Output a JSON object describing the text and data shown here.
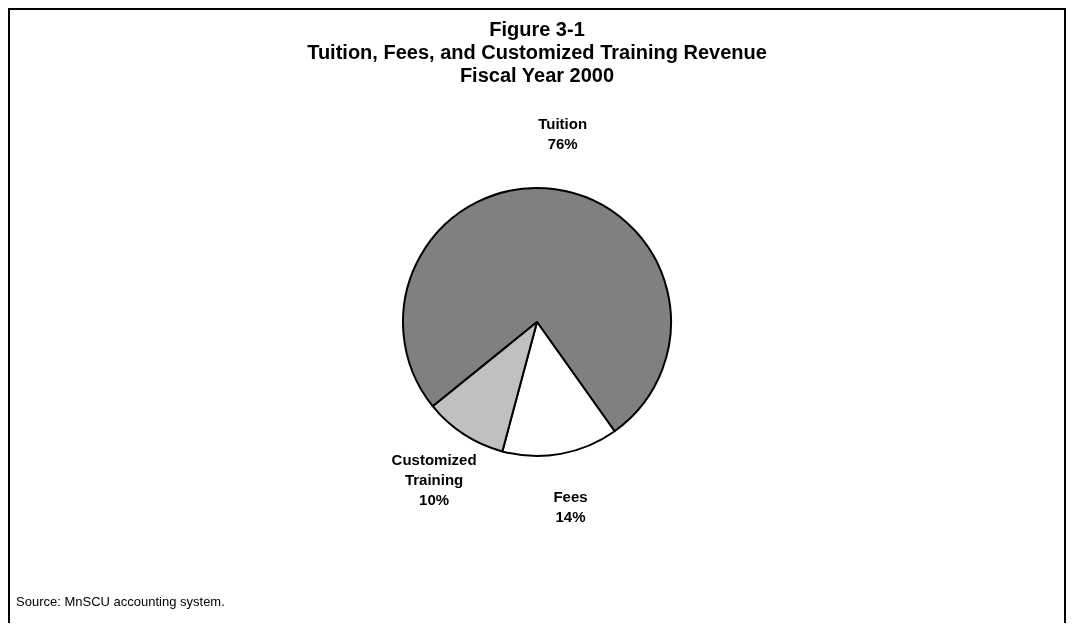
{
  "chart_data": {
    "type": "pie",
    "title": "Figure 3-1\nTuition, Fees, and Customized Training Revenue\nFiscal Year 2000",
    "categories": [
      "Tuition",
      "Fees",
      "Customized Training"
    ],
    "values": [
      76,
      14,
      10
    ],
    "value_labels": [
      "76%",
      "14%",
      "10%"
    ],
    "colors": [
      "#808080",
      "#ffffff",
      "#c0c0c0"
    ],
    "annotations": [
      "Source: MnSCU accounting system."
    ]
  }
}
